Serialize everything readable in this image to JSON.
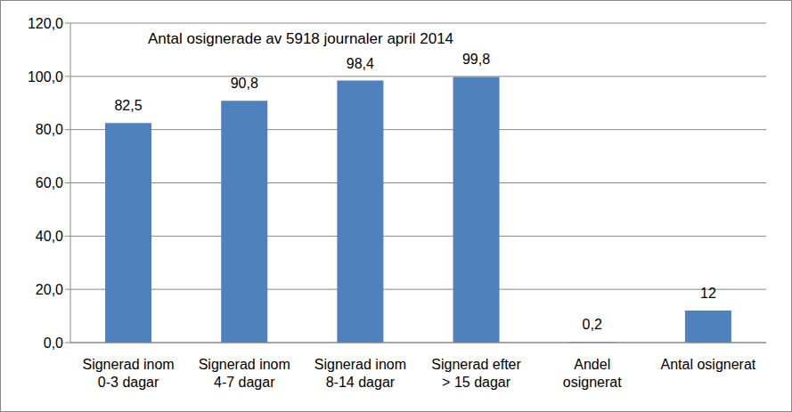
{
  "chart_data": {
    "type": "bar",
    "title": "Antal osignerade av 5918 journaler april 2014",
    "categories": [
      "Signerad inom\n0-3 dagar",
      "Signerad inom\n4-7 dagar",
      "Signerad inom\n8-14 dagar",
      "Signerad efter\n> 15 dagar",
      "Andel\nosignerat",
      "Antal osignerat"
    ],
    "values": [
      82.5,
      90.8,
      98.4,
      99.8,
      0.2,
      12
    ],
    "value_labels": [
      "82,5",
      "90,8",
      "98,4",
      "99,8",
      "0,2",
      "12"
    ],
    "color": "#4f81bd",
    "ylim": [
      0,
      120
    ],
    "yticks": [
      {
        "value": 0,
        "label": "0,0"
      },
      {
        "value": 20,
        "label": "20,0"
      },
      {
        "value": 40,
        "label": "40,0"
      },
      {
        "value": 60,
        "label": "60,0"
      },
      {
        "value": 80,
        "label": "80,0"
      },
      {
        "value": 100,
        "label": "100,0"
      },
      {
        "value": 120,
        "label": "120,0"
      }
    ],
    "grid": true,
    "data_labels": true
  }
}
